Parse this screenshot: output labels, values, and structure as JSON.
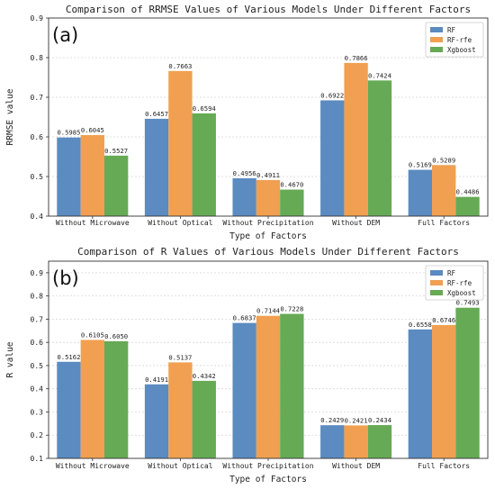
{
  "colors": {
    "RF": "#5b8bc0",
    "RF-rfe": "#f0a050",
    "Xgboost": "#66aa55"
  },
  "chart_data": [
    {
      "type": "bar",
      "panel_label": "(a)",
      "title": "Comparison of RRMSE Values of Various Models Under Different Factors",
      "xlabel": "Type of Factors",
      "ylabel": "RRMSE value",
      "ylim": [
        0.4,
        0.9
      ],
      "yticks": [
        0.4,
        0.5,
        0.6,
        0.7,
        0.8,
        0.9
      ],
      "ytick_labels": [
        "0.4",
        "0.5",
        "0.6",
        "0.7",
        "0.8",
        "0.9"
      ],
      "grid": true,
      "legend_position": "top-right",
      "categories": [
        "Without Microwave",
        "Without Optical",
        "Without Precipitation",
        "Without DEM",
        "Full Factors"
      ],
      "series": [
        {
          "name": "RF",
          "values": [
            0.5985,
            0.6457,
            0.4956,
            0.6922,
            0.5169
          ],
          "labels": [
            "0.5985",
            "0.6457",
            "0.4956",
            "0.6922",
            "0.5169"
          ]
        },
        {
          "name": "RF-rfe",
          "values": [
            0.6045,
            0.7663,
            0.4911,
            0.7866,
            0.5289
          ],
          "labels": [
            "0.6045",
            "0.7663",
            "0.4911",
            "0.7866",
            "0.5289"
          ]
        },
        {
          "name": "Xgboost",
          "values": [
            0.5527,
            0.6594,
            0.467,
            0.7424,
            0.4486
          ],
          "labels": [
            "0.5527",
            "0.6594",
            "0.4670",
            "0.7424",
            "0.4486"
          ]
        }
      ]
    },
    {
      "type": "bar",
      "panel_label": "(b)",
      "title": "Comparison of R Values of Various Models Under Different Factors",
      "xlabel": "Type of Factors",
      "ylabel": "R value",
      "ylim": [
        0.1,
        0.95
      ],
      "yticks": [
        0.1,
        0.2,
        0.3,
        0.4,
        0.5,
        0.6,
        0.7,
        0.8,
        0.9
      ],
      "ytick_labels": [
        "0.1",
        "0.2",
        "0.3",
        "0.4",
        "0.5",
        "0.6",
        "0.7",
        "0.8",
        "0.9"
      ],
      "grid": true,
      "legend_position": "top-right",
      "categories": [
        "Without Microwave",
        "Without Optical",
        "Without Precipitation",
        "Without DEM",
        "Full Factors"
      ],
      "series": [
        {
          "name": "RF",
          "values": [
            0.5162,
            0.4191,
            0.6837,
            0.2429,
            0.6558
          ],
          "labels": [
            "0.5162",
            "0.4191",
            "0.6837",
            "0.2429",
            "0.6558"
          ]
        },
        {
          "name": "RF-rfe",
          "values": [
            0.6105,
            0.5137,
            0.7144,
            0.2421,
            0.6746
          ],
          "labels": [
            "0.6105",
            "0.5137",
            "0.7144",
            "0.2421",
            "0.6746"
          ]
        },
        {
          "name": "Xgboost",
          "values": [
            0.605,
            0.4342,
            0.7228,
            0.2434,
            0.7493
          ],
          "labels": [
            "0.6050",
            "0.4342",
            "0.7228",
            "0.2434",
            "0.7493"
          ]
        }
      ]
    }
  ]
}
